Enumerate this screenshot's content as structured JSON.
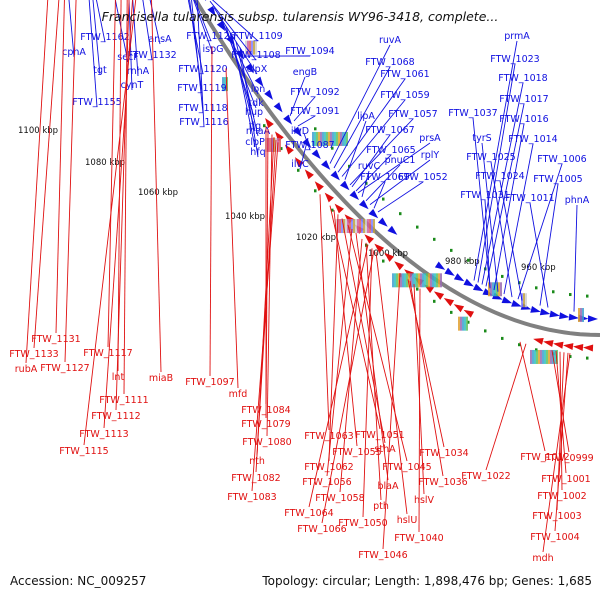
{
  "title": "Francisella tularensis subsp. tularensis WY96-3418, complete...",
  "footer": {
    "accession_label": "Accession:",
    "accession": "NC_009257",
    "summary": "Topology: circular; Length: 1,898,476 bp; Genes: 1,685"
  },
  "colors": {
    "forward": "#1010e0",
    "reverse": "#e01010",
    "backbone": "#808080",
    "tick": "#1a8a1a"
  },
  "kbp_ticks": [
    "1100 kbp",
    "1080 kbp",
    "1060 kbp",
    "1040 kbp",
    "1020 kbp",
    "1000 kbp",
    "980 kbp",
    "960 kbp"
  ],
  "forward_genes": [
    "FTW_1162",
    "cphA",
    "secF",
    "tgt",
    "ansA",
    "FTW_1132",
    "rnhA",
    "cynT",
    "FTW_1155",
    "FTW_1126",
    "ispG",
    "FTW_1120",
    "FTW_1119",
    "FTW_1118",
    "FTW_1116",
    "FTW_1109",
    "FTW_1108",
    "clpX",
    "lon",
    "tdk",
    "hup",
    "tig",
    "clpP",
    "miaA",
    "hfq",
    "FTW_1094",
    "engB",
    "FTW_1092",
    "FTW_1091",
    "ilvD",
    "FTW_1087",
    "ilvC",
    "ruvA",
    "FTW_1068",
    "FTW_1061",
    "FTW_1059",
    "lipA",
    "FTW_1057",
    "FTW_1067",
    "FTW_1065",
    "prsA",
    "ruvC",
    "pnuC1",
    "rplY",
    "FTW_1069",
    "FTW_1052",
    "prmA",
    "FTW_1023",
    "FTW_1018",
    "FTW_1017",
    "FTW_1037",
    "FTW_1016",
    "tyrS",
    "FTW_1014",
    "FTW_1025",
    "FTW_1006",
    "FTW_1024",
    "FTW_1005",
    "FTW_1031",
    "FTW_1011",
    "phnA"
  ],
  "reverse_genes": [
    "FTW_1131",
    "FTW_1133",
    "rubA",
    "FTW_1127",
    "FTW_1117",
    "lnt",
    "miaB",
    "FTW_1111",
    "FTW_1112",
    "FTW_1113",
    "FTW_1115",
    "FTW_1097",
    "mfd",
    "FTW_1084",
    "FTW_1079",
    "FTW_1080",
    "nth",
    "FTW_1082",
    "FTW_1083",
    "FTW_1063",
    "FTW_1051",
    "FTW_1055",
    "FTW_1062",
    "sthA",
    "FTW_1045",
    "FTW_1034",
    "FTW_1056",
    "blaA",
    "FTW_1058",
    "pth",
    "FTW_1036",
    "hslV",
    "FTW_1064",
    "FTW_1050",
    "hslU",
    "FTW_1066",
    "FTW_1040",
    "FTW_1046",
    "FTW_1012",
    "FTW_0999",
    "FTW_1022",
    "FTW_1001",
    "FTW_1002",
    "FTW_1003",
    "FTW_1004",
    "mdh"
  ]
}
